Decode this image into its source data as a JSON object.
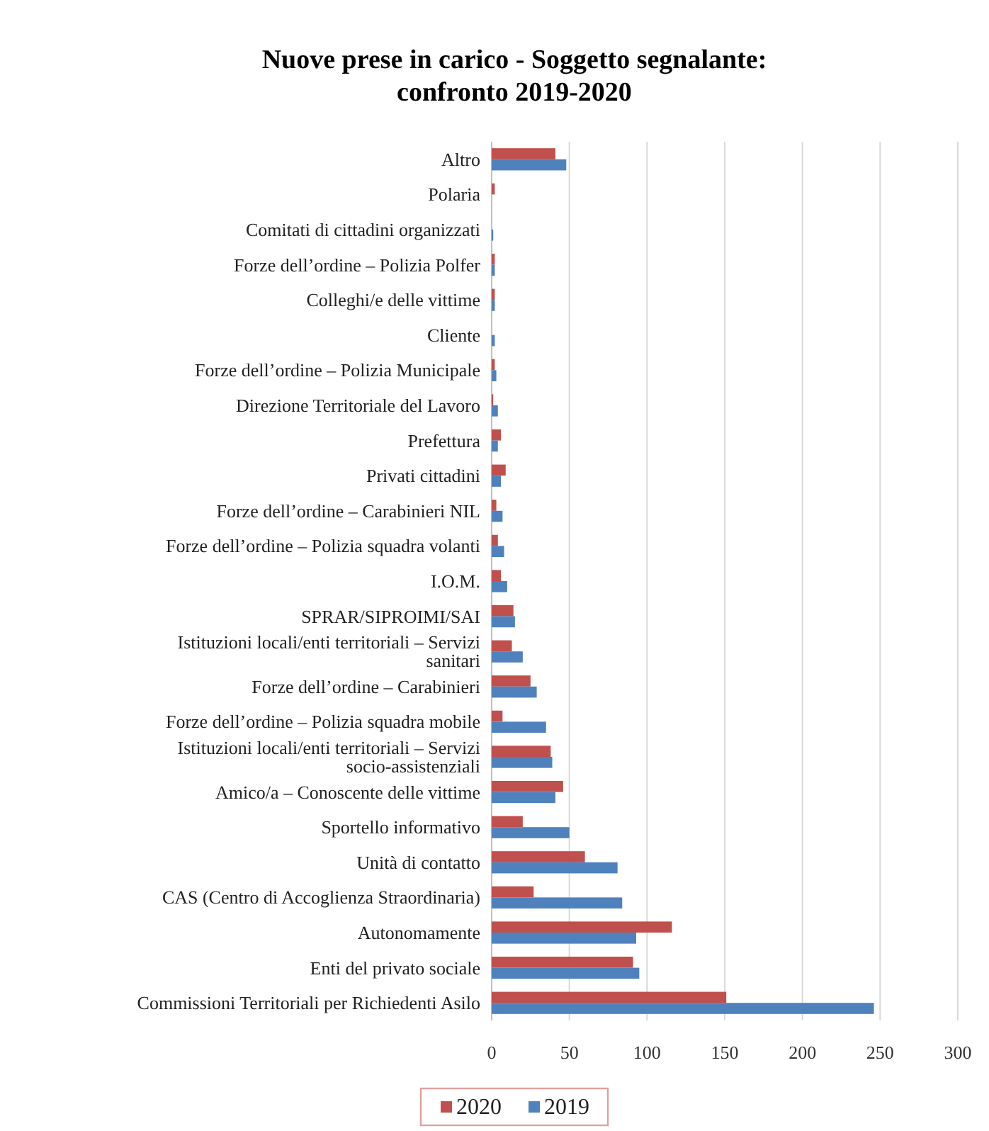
{
  "chart_data": {
    "type": "bar",
    "orientation": "horizontal",
    "title": "Nuove prese in carico - Soggetto segnalante: confronto 2019-2020",
    "categories": [
      "Altro",
      "Polaria",
      "Comitati di cittadini organizzati",
      "Forze dell’ordine – Polizia Polfer",
      "Colleghi/e delle vittime",
      "Cliente",
      "Forze dell’ordine – Polizia Municipale",
      "Direzione Territoriale del Lavoro",
      "Prefettura",
      "Privati cittadini",
      "Forze dell’ordine – Carabinieri NIL",
      "Forze dell’ordine – Polizia squadra volanti",
      "I.O.M.",
      "SPRAR/SIPROIMI/SAI",
      "Istituzioni locali/enti territoriali – Servizi sanitari",
      "Forze dell’ordine – Carabinieri",
      "Forze dell’ordine – Polizia squadra mobile",
      "Istituzioni locali/enti territoriali – Servizi socio-assistenziali",
      "Amico/a – Conoscente delle vittime",
      "Sportello informativo",
      "Unità di contatto",
      "CAS (Centro di Accoglienza Straordinaria)",
      "Autonomamente",
      "Enti del privato sociale",
      "Commissioni Territoriali per Richiedenti Asilo"
    ],
    "series": [
      {
        "name": "2020",
        "color": "#c0504d",
        "values": [
          41,
          2,
          0,
          2,
          2,
          0,
          2,
          1,
          6,
          9,
          3,
          4,
          6,
          14,
          13,
          25,
          7,
          38,
          46,
          20,
          60,
          27,
          116,
          91,
          151
        ]
      },
      {
        "name": "2019",
        "color": "#4f81bd",
        "values": [
          48,
          0,
          1,
          2,
          2,
          2,
          3,
          4,
          4,
          6,
          7,
          8,
          10,
          15,
          20,
          29,
          35,
          39,
          41,
          50,
          81,
          84,
          93,
          95,
          246
        ]
      }
    ],
    "xlim": [
      0,
      300
    ],
    "xticks": [
      0,
      50,
      100,
      150,
      200,
      250,
      300
    ],
    "grid": "x",
    "legend": "bottom"
  }
}
